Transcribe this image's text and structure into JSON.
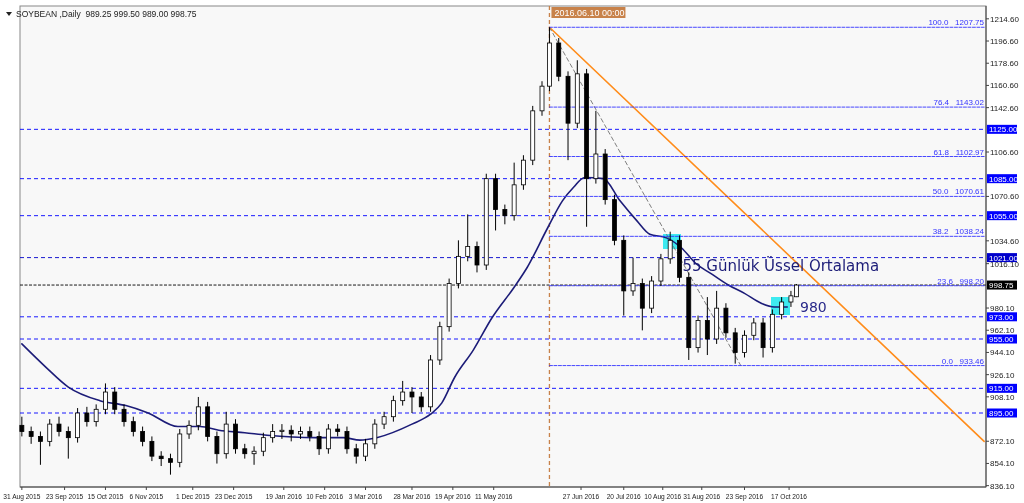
{
  "chart_data": {
    "type": "candlestick",
    "title": "SOYBEAN ,Daily  989.25 999.50 989.00 998.75",
    "x": [
      "2015-08-31",
      "2015-09-05",
      "2015-09-10",
      "2015-09-15",
      "2015-09-20",
      "2015-09-25",
      "2015-09-30",
      "2015-10-05",
      "2015-10-10",
      "2015-10-15",
      "2015-10-20",
      "2015-10-25",
      "2015-10-30",
      "2015-11-04",
      "2015-11-09",
      "2015-11-14",
      "2015-11-19",
      "2015-11-24",
      "2015-11-29",
      "2015-12-04",
      "2015-12-09",
      "2015-12-14",
      "2015-12-19",
      "2015-12-24",
      "2015-12-29",
      "2016-01-03",
      "2016-01-08",
      "2016-01-13",
      "2016-01-18",
      "2016-01-23",
      "2016-01-28",
      "2016-02-02",
      "2016-02-07",
      "2016-02-12",
      "2016-02-17",
      "2016-02-22",
      "2016-02-27",
      "2016-03-03",
      "2016-03-08",
      "2016-03-13",
      "2016-03-18",
      "2016-03-23",
      "2016-03-28",
      "2016-04-02",
      "2016-04-07",
      "2016-04-12",
      "2016-04-17",
      "2016-04-22",
      "2016-04-27",
      "2016-05-02",
      "2016-05-07",
      "2016-05-12",
      "2016-05-17",
      "2016-05-22",
      "2016-05-27",
      "2016-06-01",
      "2016-06-06",
      "2016-06-10",
      "2016-06-15",
      "2016-06-20",
      "2016-06-25",
      "2016-06-30",
      "2016-07-05",
      "2016-07-10",
      "2016-07-15",
      "2016-07-20",
      "2016-07-25",
      "2016-07-30",
      "2016-08-04",
      "2016-08-09",
      "2016-08-14",
      "2016-08-19",
      "2016-08-24",
      "2016-08-29",
      "2016-09-03",
      "2016-09-08",
      "2016-09-13",
      "2016-09-18",
      "2016-09-23",
      "2016-09-28",
      "2016-10-03",
      "2016-10-08",
      "2016-10-13",
      "2016-10-18",
      "2016-10-21"
    ],
    "ohlc": [
      [
        885,
        892,
        876,
        880
      ],
      [
        880,
        884,
        870,
        876
      ],
      [
        876,
        880,
        853,
        872
      ],
      [
        872,
        890,
        868,
        886
      ],
      [
        886,
        892,
        876,
        880
      ],
      [
        880,
        884,
        858,
        875
      ],
      [
        875,
        899,
        871,
        895
      ],
      [
        895,
        900,
        884,
        888
      ],
      [
        888,
        902,
        884,
        898
      ],
      [
        898,
        919,
        894,
        912
      ],
      [
        912,
        916,
        894,
        898
      ],
      [
        898,
        902,
        884,
        888
      ],
      [
        888,
        892,
        876,
        880
      ],
      [
        880,
        884,
        868,
        872
      ],
      [
        872,
        876,
        856,
        860
      ],
      [
        860,
        864,
        852,
        858
      ],
      [
        858,
        862,
        845,
        855
      ],
      [
        855,
        882,
        851,
        878
      ],
      [
        878,
        889,
        874,
        885
      ],
      [
        885,
        908,
        881,
        900
      ],
      [
        900,
        904,
        872,
        876
      ],
      [
        876,
        880,
        854,
        862
      ],
      [
        862,
        896,
        858,
        886
      ],
      [
        886,
        890,
        862,
        866
      ],
      [
        866,
        870,
        858,
        862
      ],
      [
        862,
        868,
        853,
        864
      ],
      [
        864,
        879,
        860,
        875
      ],
      [
        875,
        886,
        871,
        880
      ],
      [
        880,
        886,
        874,
        881
      ],
      [
        881,
        885,
        872,
        878
      ],
      [
        878,
        884,
        874,
        880
      ],
      [
        880,
        884,
        872,
        876
      ],
      [
        876,
        880,
        861,
        866
      ],
      [
        866,
        886,
        862,
        882
      ],
      [
        882,
        886,
        876,
        880
      ],
      [
        880,
        884,
        862,
        866
      ],
      [
        866,
        870,
        854,
        860
      ],
      [
        860,
        874,
        856,
        870
      ],
      [
        870,
        890,
        866,
        886
      ],
      [
        886,
        896,
        882,
        892
      ],
      [
        892,
        909,
        888,
        905
      ],
      [
        905,
        921,
        901,
        912
      ],
      [
        912,
        916,
        895,
        908
      ],
      [
        908,
        912,
        896,
        900
      ],
      [
        900,
        942,
        896,
        938
      ],
      [
        938,
        969,
        934,
        965
      ],
      [
        965,
        1004,
        961,
        1000
      ],
      [
        1000,
        1035,
        996,
        1022
      ],
      [
        1022,
        1056,
        1018,
        1030
      ],
      [
        1030,
        1034,
        1009,
        1015
      ],
      [
        1015,
        1089,
        1011,
        1085
      ],
      [
        1085,
        1089,
        1043,
        1060
      ],
      [
        1060,
        1064,
        1048,
        1055
      ],
      [
        1055,
        1098,
        1051,
        1080
      ],
      [
        1080,
        1104,
        1076,
        1100
      ],
      [
        1100,
        1144,
        1096,
        1140
      ],
      [
        1140,
        1164,
        1136,
        1160
      ],
      [
        1160,
        1207.75,
        1156,
        1195
      ],
      [
        1195,
        1199,
        1164,
        1168
      ],
      [
        1168,
        1172,
        1100,
        1130
      ],
      [
        1130,
        1181,
        1126,
        1170
      ],
      [
        1170,
        1174,
        1046,
        1085
      ],
      [
        1085,
        1140,
        1081,
        1105
      ],
      [
        1105,
        1109,
        1064,
        1068
      ],
      [
        1068,
        1072,
        1031,
        1035
      ],
      [
        1035,
        1039,
        974,
        994
      ],
      [
        994,
        1021,
        990,
        1000
      ],
      [
        1000,
        1004,
        962,
        980
      ],
      [
        980,
        1006,
        976,
        1002
      ],
      [
        1002,
        1024,
        998,
        1020
      ],
      [
        1020,
        1042,
        1016,
        1035
      ],
      [
        1035,
        1039,
        1001,
        1005
      ],
      [
        1005,
        1009,
        938,
        948
      ],
      [
        948,
        974,
        944,
        970
      ],
      [
        970,
        989,
        942,
        955
      ],
      [
        955,
        994,
        951,
        980
      ],
      [
        980,
        984,
        956,
        960
      ],
      [
        960,
        964,
        935,
        944
      ],
      [
        944,
        962,
        940,
        958
      ],
      [
        958,
        972,
        954,
        968
      ],
      [
        968,
        972,
        940,
        948
      ],
      [
        948,
        979,
        944,
        975
      ],
      [
        975,
        989,
        971,
        985
      ],
      [
        985,
        994,
        981,
        990
      ],
      [
        989.25,
        999.5,
        989,
        998.75
      ]
    ],
    "series": [
      {
        "type": "line",
        "name": "55 Günlük Üssel Ortalama",
        "color": "#1c1c78",
        "x": [
          "2015-08-31",
          "2015-09-13",
          "2015-09-25",
          "2015-10-12",
          "2015-10-26",
          "2015-11-07",
          "2015-11-23",
          "2015-12-05",
          "2015-12-15",
          "2015-12-29",
          "2016-01-10",
          "2016-02-05",
          "2016-02-20",
          "2016-02-29",
          "2016-03-09",
          "2016-03-28",
          "2016-04-07",
          "2016-04-13",
          "2016-04-20",
          "2016-04-30",
          "2016-05-10",
          "2016-05-22",
          "2016-05-29",
          "2016-06-09",
          "2016-06-17",
          "2016-06-23",
          "2016-06-29",
          "2016-07-09",
          "2016-07-18",
          "2016-07-27",
          "2016-08-03",
          "2016-08-12",
          "2016-08-20",
          "2016-08-28",
          "2016-09-05",
          "2016-09-14",
          "2016-09-23",
          "2016-10-02",
          "2016-10-09",
          "2016-10-16"
        ],
        "values": [
          951,
          932,
          916,
          905,
          901,
          895,
          884,
          884,
          881,
          879,
          877,
          875,
          875,
          873,
          875,
          886,
          894,
          903,
          924,
          946,
          972,
          997,
          1013,
          1045,
          1067,
          1078,
          1086,
          1085,
          1067,
          1051,
          1040,
          1037,
          1029,
          1016,
          1008,
          999,
          992,
          984,
          981,
          981
        ]
      },
      {
        "type": "line",
        "color": "#ff8c1a",
        "x": [
          "2016-06-10",
          "2017-01-30"
        ],
        "values": [
          1207.75,
          872
        ]
      },
      {
        "type": "line",
        "color": "#707070",
        "line_style": "dashed",
        "x": [
          "2016-06-10",
          "2016-09-21"
        ],
        "values": [
          1207.75,
          933.46
        ]
      },
      {
        "type": "line",
        "color": "#3333ff",
        "line_style": "dotted",
        "x": [
          "2016-06-10",
          "2017-01-30"
        ],
        "values": [
          1207.75,
          1207.75
        ]
      },
      {
        "type": "line",
        "color": "#3333ff",
        "line_style": "dotted",
        "x": [
          "2016-06-10",
          "2017-01-30"
        ],
        "values": [
          1143.02,
          1143.02
        ]
      },
      {
        "type": "line",
        "color": "#3333ff",
        "line_style": "dotted",
        "x": [
          "2016-06-10",
          "2017-01-30"
        ],
        "values": [
          1102.97,
          1102.97
        ]
      },
      {
        "type": "line",
        "color": "#3333ff",
        "line_style": "dotted",
        "x": [
          "2016-06-10",
          "2017-01-30"
        ],
        "values": [
          1070.61,
          1070.61
        ]
      },
      {
        "type": "line",
        "color": "#3333ff",
        "line_style": "dotted",
        "x": [
          "2016-06-10",
          "2017-01-30"
        ],
        "values": [
          1038.24,
          1038.24
        ]
      },
      {
        "type": "line",
        "color": "#3333ff",
        "line_style": "dotted",
        "x": [
          "2016-06-10",
          "2017-01-30"
        ],
        "values": [
          998.2,
          998.2
        ]
      },
      {
        "type": "line",
        "color": "#3333ff",
        "line_style": "dotted",
        "x": [
          "2016-06-10",
          "2017-01-30"
        ],
        "values": [
          933.46,
          933.46
        ]
      }
    ],
    "annotations": [
      {
        "text": "100.0   1207.75",
        "x": "2017-01-30",
        "y": 1207.75
      },
      {
        "text": "76.4   1143.02",
        "x": "2017-01-30",
        "y": 1143.02
      },
      {
        "text": "61.8   1102.97",
        "x": "2017-01-30",
        "y": 1102.97
      },
      {
        "text": "50.0   1070.61",
        "x": "2017-01-30",
        "y": 1070.61
      },
      {
        "text": "38.2   1038.24",
        "x": "2017-01-30",
        "y": 1038.24
      },
      {
        "text": "23.6   998.20",
        "x": "2017-01-30",
        "y": 998.2
      },
      {
        "text": "0.0   933.46",
        "x": "2017-01-30",
        "y": 933.46
      },
      "980"
    ],
    "ref_lines": [
      {
        "axis": "y",
        "value": 1125,
        "label": "1125.00",
        "color": "#0000ff",
        "line_style": "dashed"
      },
      {
        "axis": "y",
        "value": 1085,
        "label": "1085.00",
        "color": "#0000ff",
        "line_style": "dashed"
      },
      {
        "axis": "y",
        "value": 1055,
        "label": "1055.00",
        "color": "#0000ff",
        "line_style": "dashed"
      },
      {
        "axis": "y",
        "value": 1021,
        "label": "1021.00",
        "color": "#0000cc",
        "line_style": "dashed"
      },
      {
        "axis": "y",
        "value": 998.75,
        "label": "998.75",
        "color": "#000000",
        "line_style": "dotted"
      },
      {
        "axis": "y",
        "value": 973,
        "label": "973.00",
        "color": "#0000ff",
        "line_style": "dashed"
      },
      {
        "axis": "y",
        "value": 955,
        "label": "955.00",
        "color": "#0000ff",
        "line_style": "dashed"
      },
      {
        "axis": "y",
        "value": 915,
        "label": "915.00",
        "color": "#0000ff",
        "line_style": "dashed"
      },
      {
        "axis": "y",
        "value": 895,
        "label": "895.00",
        "color": "#0000ff",
        "line_style": "dashed"
      },
      {
        "axis": "x",
        "value": "2016-06-10",
        "label": "2016.06.10 00:00",
        "color": "#c8824a",
        "line_style": "dashed"
      }
    ],
    "xlim": [
      "2015-08-30",
      "2017-01-31"
    ],
    "ylim": [
      835,
      1225
    ],
    "xticks": [
      {
        "value": "2015-08-31",
        "label": "31 Aug 2015"
      },
      {
        "value": "2015-09-23",
        "label": "23 Sep 2015"
      },
      {
        "value": "2015-10-15",
        "label": "15 Oct 2015"
      },
      {
        "value": "2015-11-06",
        "label": "6 Nov 2015"
      },
      {
        "value": "2015-12-01",
        "label": "1 Dec 2015"
      },
      {
        "value": "2015-12-23",
        "label": "23 Dec 2015"
      },
      {
        "value": "2016-01-19",
        "label": "19 Jan 2016"
      },
      {
        "value": "2016-02-10",
        "label": "10 Feb 2016"
      },
      {
        "value": "2016-03-03",
        "label": "3 Mar 2016"
      },
      {
        "value": "2016-03-28",
        "label": "28 Mar 2016"
      },
      {
        "value": "2016-04-19",
        "label": "19 Apr 2016"
      },
      {
        "value": "2016-05-11",
        "label": "11 May 2016"
      },
      {
        "value": "2016-06-27",
        "label": "27 Jun 2016"
      },
      {
        "value": "2016-07-20",
        "label": "20 Jul 2016"
      },
      {
        "value": "2016-08-10",
        "label": "10 Aug 2016"
      },
      {
        "value": "2016-08-31",
        "label": "31 Aug 2016"
      },
      {
        "value": "2016-09-23",
        "label": "23 Sep 2016"
      },
      {
        "value": "2016-10-17",
        "label": "17 Oct 2016"
      }
    ],
    "yticks": [
      {
        "value": 1214.6,
        "label": "1214.60"
      },
      {
        "value": 1196.6,
        "label": "1196.60"
      },
      {
        "value": 1178.6,
        "label": "1178.60"
      },
      {
        "value": 1160.6,
        "label": "1160.60"
      },
      {
        "value": 1142.6,
        "label": "1142.60"
      },
      {
        "value": 1106.6,
        "label": "1106.60"
      },
      {
        "value": 1070.6,
        "label": "1070.60"
      },
      {
        "value": 1034.6,
        "label": "1034.60"
      },
      {
        "value": 1016.1,
        "label": "1016.10"
      },
      {
        "value": 980.1,
        "label": "980.10"
      },
      {
        "value": 962.1,
        "label": "962.10"
      },
      {
        "value": 944.1,
        "label": "944.10"
      },
      {
        "value": 926.1,
        "label": "926.10"
      },
      {
        "value": 908.1,
        "label": "908.10"
      },
      {
        "value": 872.1,
        "label": "872.10"
      },
      {
        "value": 854.1,
        "label": "854.10"
      },
      {
        "value": 836.1,
        "label": "836.10"
      }
    ],
    "grid": false
  }
}
